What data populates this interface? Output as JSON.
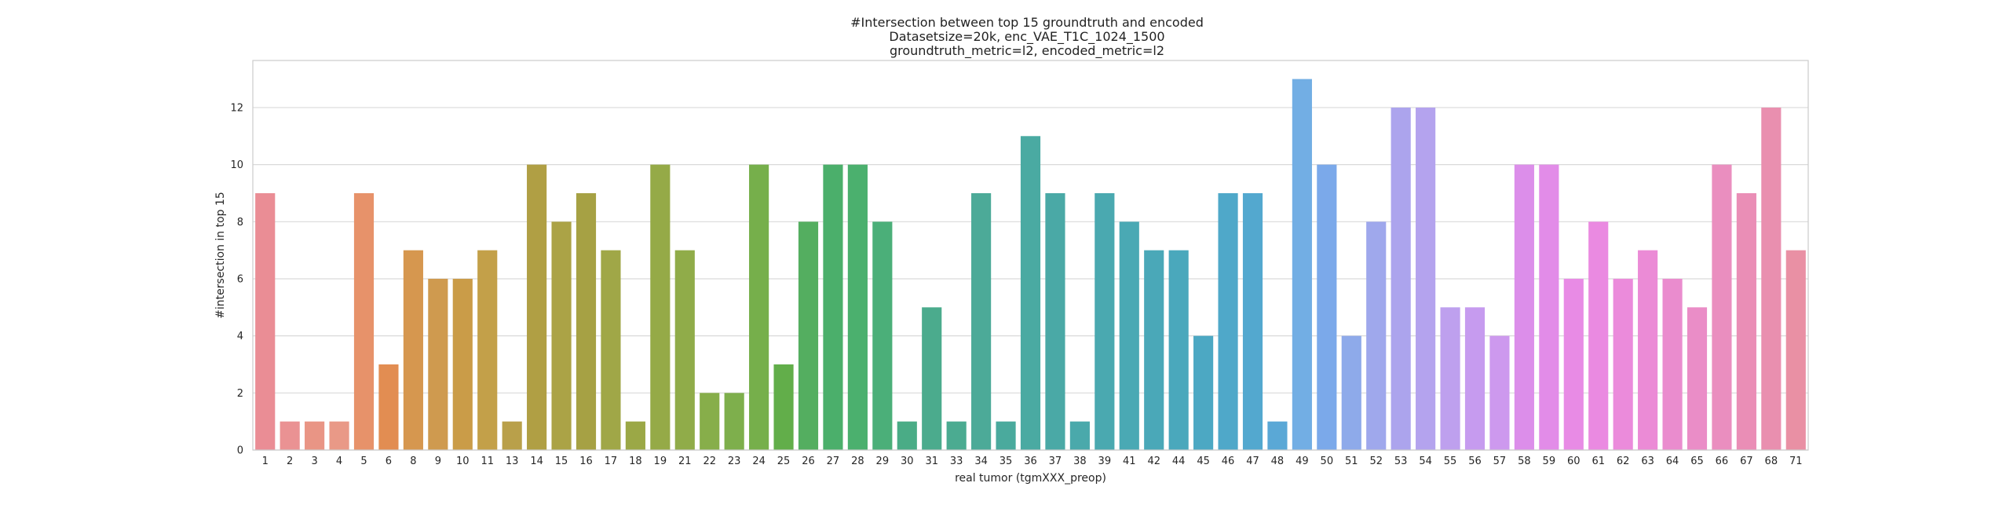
{
  "chart_data": {
    "type": "bar",
    "title_lines": [
      "#Intersection between top 15 groundtruth and encoded",
      "Datasetsize=20k, enc_VAE_T1C_1024_1500",
      "groundtruth_metric=l2, encoded_metric=l2"
    ],
    "xlabel": "real tumor (tgmXXX_preop)",
    "ylabel": "#intersection in top 15",
    "ylim": [
      0,
      13.65
    ],
    "yticks": [
      0,
      2,
      4,
      6,
      8,
      10,
      12
    ],
    "grid": true,
    "legend": "none",
    "categories": [
      "1",
      "2",
      "3",
      "4",
      "5",
      "6",
      "8",
      "9",
      "10",
      "11",
      "13",
      "14",
      "15",
      "16",
      "17",
      "18",
      "19",
      "21",
      "22",
      "23",
      "24",
      "25",
      "26",
      "27",
      "28",
      "29",
      "30",
      "31",
      "33",
      "34",
      "35",
      "36",
      "37",
      "38",
      "39",
      "41",
      "42",
      "44",
      "45",
      "46",
      "47",
      "48",
      "49",
      "50",
      "51",
      "52",
      "53",
      "54",
      "55",
      "56",
      "57",
      "58",
      "59",
      "60",
      "61",
      "62",
      "63",
      "64",
      "65",
      "66",
      "67",
      "68",
      "71"
    ],
    "values": [
      9,
      1,
      1,
      1,
      9,
      3,
      7,
      6,
      6,
      7,
      1,
      10,
      8,
      9,
      7,
      1,
      10,
      7,
      2,
      2,
      10,
      3,
      8,
      10,
      10,
      8,
      1,
      5,
      1,
      9,
      1,
      11,
      9,
      1,
      9,
      8,
      7,
      7,
      4,
      9,
      9,
      1,
      13,
      10,
      4,
      8,
      12,
      12,
      5,
      5,
      4,
      10,
      10,
      6,
      8,
      6,
      7,
      6,
      5,
      10,
      9,
      12,
      7
    ],
    "colors": [
      "#ea8d95",
      "#ea9293",
      "#e99585",
      "#e99987",
      "#e7926a",
      "#e28d52",
      "#d6974f",
      "#cf9a4f",
      "#ca9c48",
      "#c3a049",
      "#b9a04a",
      "#b09f44",
      "#aba346",
      "#a6a144",
      "#a0a747",
      "#9ba846",
      "#95aa47",
      "#90ac49",
      "#87ae4a",
      "#7eaf4c",
      "#76af4b",
      "#62ae4a",
      "#54ae60",
      "#4baf6b",
      "#4bb06e",
      "#4baf79",
      "#4aac86",
      "#4bab8d",
      "#4bab91",
      "#4caa98",
      "#4aaa9d",
      "#4aaaa2",
      "#4aa9a6",
      "#4aa9ab",
      "#4aa9b0",
      "#4aa9b4",
      "#4aa8b8",
      "#4aa8bc",
      "#4ca8c3",
      "#4fa8c9",
      "#53a8cf",
      "#5aa8d6",
      "#72aee4",
      "#7ba9ea",
      "#8eaaea",
      "#9fa8ec",
      "#aca4ed",
      "#b4a3ee",
      "#bea0ee",
      "#c69bef",
      "#cd99ee",
      "#dc8eea",
      "#e28ce8",
      "#e88be5",
      "#ea8ae1",
      "#eb8bdb",
      "#eb8bd6",
      "#ea8cce",
      "#ea8dc7",
      "#ea8ebf",
      "#ea8eb6",
      "#e98faf",
      "#e990a4"
    ]
  }
}
